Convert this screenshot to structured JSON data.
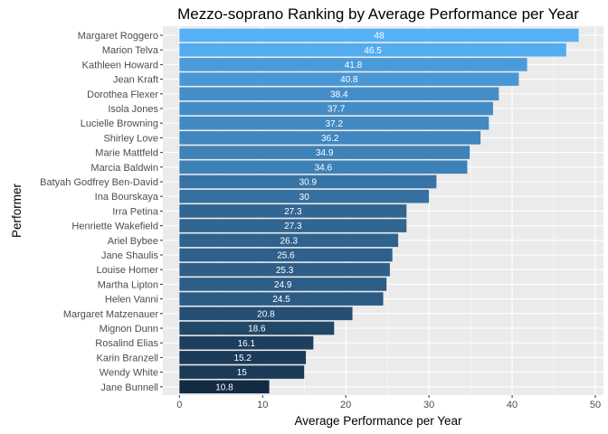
{
  "chart_data": {
    "type": "bar",
    "orientation": "horizontal",
    "title": "Mezzo-soprano Ranking by Average Performance per Year",
    "xlabel": "Average Performance per Year",
    "ylabel": "Performer",
    "xlim": [
      0,
      50
    ],
    "xticks": [
      "0",
      "10",
      "20",
      "30",
      "40",
      "50"
    ],
    "grid": true,
    "categories": [
      "Margaret Roggero",
      "Marion Telva",
      "Kathleen Howard",
      "Jean Kraft",
      "Dorothea Flexer",
      "Isola Jones",
      "Lucielle Browning",
      "Shirley Love",
      "Marie Mattfeld",
      "Marcia Baldwin",
      "Batyah Godfrey Ben-David",
      "Ina Bourskaya",
      "Irra Petina",
      "Henriette Wakefield",
      "Ariel Bybee",
      "Jane Shaulis",
      "Louise Homer",
      "Martha Lipton",
      "Helen Vanni",
      "Margaret Matzenauer",
      "Mignon Dunn",
      "Rosalind Elias",
      "Karin Branzell",
      "Wendy White",
      "Jane Bunnell"
    ],
    "values": [
      48,
      46.5,
      41.8,
      40.8,
      38.4,
      37.7,
      37.2,
      36.2,
      34.9,
      34.6,
      30.9,
      30,
      27.3,
      27.3,
      26.3,
      25.6,
      25.3,
      24.9,
      24.5,
      20.8,
      18.6,
      16.1,
      15.2,
      15,
      10.8
    ],
    "value_labels": [
      "48",
      "46.5",
      "41.8",
      "40.8",
      "38.4",
      "37.7",
      "37.2",
      "36.2",
      "34.9",
      "34.6",
      "30.9",
      "30",
      "27.3",
      "27.3",
      "26.3",
      "25.6",
      "25.3",
      "24.9",
      "24.5",
      "20.8",
      "18.6",
      "16.1",
      "15.2",
      "15",
      "10.8"
    ],
    "color_low": "#132B43",
    "color_high": "#56B1F7",
    "panel_bg": "#EBEBEB",
    "grid_color": "#FFFFFF"
  }
}
